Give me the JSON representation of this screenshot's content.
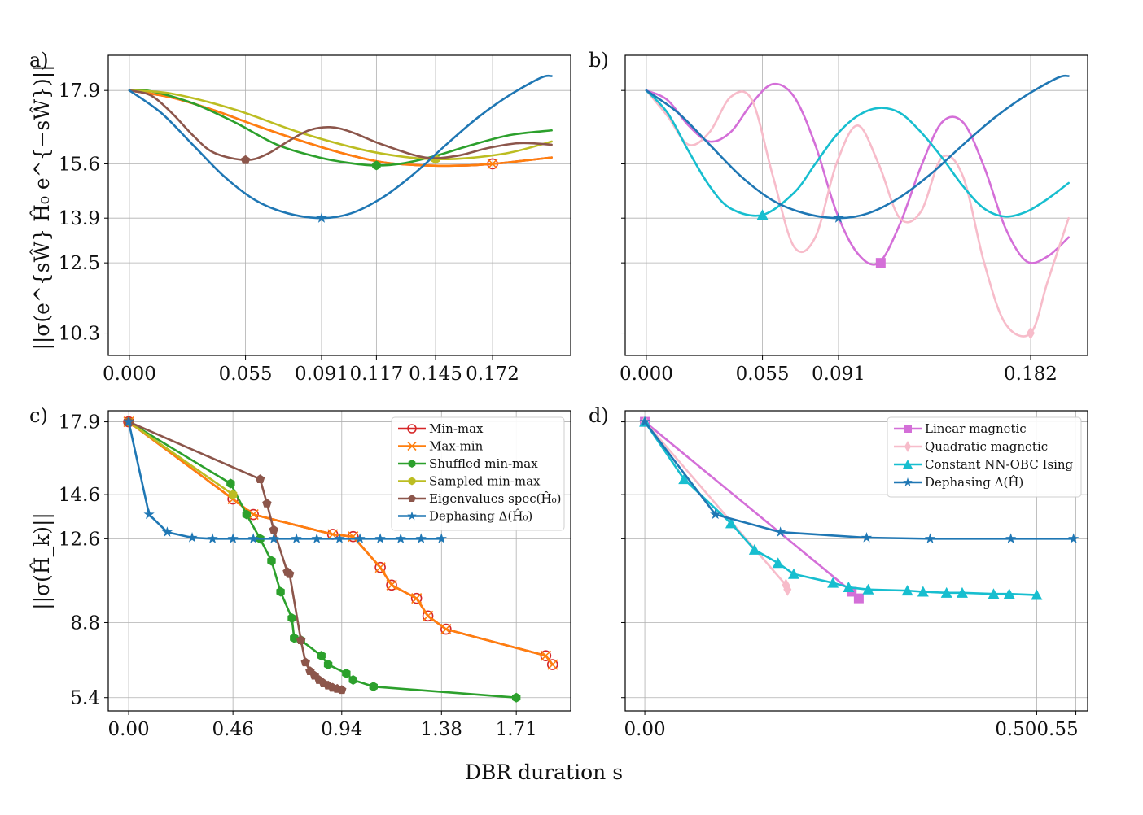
{
  "figure": {
    "xlabel": "DBR duration s",
    "ylabel_top": "||σ(e^{sŴ} Ĥ₀ e^{−sŴ})||",
    "ylabel_bottom": "||σ(Ĥ_k)||"
  },
  "colors": {
    "minmax": "#d62728",
    "maxmin": "#ff7f0e",
    "shuffled": "#2ca02c",
    "sampled": "#bcbd22",
    "eigen": "#8c564b",
    "dephasing": "#1f77b4",
    "linear": "#d46fd8",
    "quadratic": "#f7bcca",
    "ising": "#17becf",
    "dephasing_d": "#1f77b4"
  },
  "chart_data": [
    {
      "id": "a",
      "panel_label": "a)",
      "type": "line",
      "xlim": [
        -0.01,
        0.209
      ],
      "ylim": [
        9.6,
        19.0
      ],
      "xticks": [
        0.0,
        0.055,
        0.091,
        0.117,
        0.145,
        0.172
      ],
      "xtick_labels": [
        "0.000",
        "0.055",
        "0.091",
        "0.117",
        "0.145",
        "0.172"
      ],
      "yticks": [
        17.9,
        15.6,
        13.9,
        12.5,
        10.3
      ],
      "ytick_labels": [
        "17.9",
        "15.6",
        "13.9",
        "12.5",
        "10.3"
      ],
      "series": [
        {
          "name": "Min-max",
          "color_key": "minmax",
          "x": [
            0,
            0.02,
            0.04,
            0.06,
            0.08,
            0.1,
            0.12,
            0.14,
            0.16,
            0.172,
            0.18,
            0.2
          ],
          "y": [
            17.9,
            17.68,
            17.28,
            16.8,
            16.35,
            15.95,
            15.65,
            15.55,
            15.55,
            15.6,
            15.65,
            15.8
          ],
          "marker": {
            "x": 0.172,
            "y": 15.6,
            "symbol": "circle-open"
          }
        },
        {
          "name": "Max-min",
          "color_key": "maxmin",
          "x": [
            0,
            0.02,
            0.04,
            0.06,
            0.08,
            0.1,
            0.12,
            0.14,
            0.16,
            0.172,
            0.18,
            0.2
          ],
          "y": [
            17.9,
            17.68,
            17.28,
            16.8,
            16.35,
            15.95,
            15.65,
            15.55,
            15.55,
            15.6,
            15.65,
            15.8
          ],
          "marker": {
            "x": 0.172,
            "y": 15.6,
            "symbol": "x"
          }
        },
        {
          "name": "Shuffled min-max",
          "color_key": "shuffled",
          "x": [
            0,
            0.01,
            0.03,
            0.05,
            0.07,
            0.09,
            0.105,
            0.117,
            0.13,
            0.145,
            0.16,
            0.18,
            0.2
          ],
          "y": [
            17.9,
            17.88,
            17.5,
            16.9,
            16.2,
            15.8,
            15.62,
            15.55,
            15.62,
            15.85,
            16.15,
            16.5,
            16.65
          ],
          "marker": {
            "x": 0.117,
            "y": 15.55,
            "symbol": "hexagon"
          }
        },
        {
          "name": "Sampled min-max",
          "color_key": "sampled",
          "x": [
            0,
            0.02,
            0.05,
            0.08,
            0.11,
            0.13,
            0.145,
            0.16,
            0.18,
            0.2
          ],
          "y": [
            17.9,
            17.8,
            17.3,
            16.6,
            16.05,
            15.82,
            15.75,
            15.78,
            15.95,
            16.3
          ],
          "marker": {
            "x": 0.145,
            "y": 15.75,
            "symbol": "hexagon"
          }
        },
        {
          "name": "Eigenvalues spec(Ĥ₀)",
          "color_key": "eigen",
          "x": [
            0,
            0.01,
            0.02,
            0.03,
            0.04,
            0.055,
            0.065,
            0.075,
            0.085,
            0.095,
            0.105,
            0.12,
            0.14,
            0.155,
            0.17,
            0.185,
            0.2
          ],
          "y": [
            17.9,
            17.75,
            17.2,
            16.5,
            15.95,
            15.72,
            15.9,
            16.3,
            16.65,
            16.75,
            16.6,
            16.2,
            15.8,
            15.85,
            16.1,
            16.25,
            16.2
          ],
          "marker": {
            "x": 0.055,
            "y": 15.72,
            "symbol": "pentagon"
          }
        },
        {
          "name": "Dephasing Δ(Ĥ₀)",
          "color_key": "dephasing",
          "x": [
            0,
            0.015,
            0.03,
            0.045,
            0.06,
            0.075,
            0.091,
            0.105,
            0.12,
            0.135,
            0.15,
            0.165,
            0.18,
            0.195,
            0.2
          ],
          "y": [
            17.9,
            17.2,
            16.2,
            15.2,
            14.45,
            14.05,
            13.9,
            14.05,
            14.55,
            15.3,
            16.2,
            17.05,
            17.75,
            18.3,
            18.35
          ],
          "marker": {
            "x": 0.091,
            "y": 13.9,
            "symbol": "star"
          }
        }
      ]
    },
    {
      "id": "b",
      "panel_label": "b)",
      "type": "line",
      "xlim": [
        -0.01,
        0.209
      ],
      "ylim": [
        9.6,
        19.0
      ],
      "xticks": [
        0.0,
        0.055,
        0.091,
        0.182
      ],
      "xtick_labels": [
        "0.000",
        "0.055",
        "0.091",
        "0.182"
      ],
      "yticks": [
        17.9,
        15.6,
        13.9,
        12.5,
        10.3
      ],
      "ytick_labels": [
        "",
        "",
        "",
        "",
        ""
      ],
      "series": [
        {
          "name": "Linear magnetic",
          "color_key": "linear",
          "x": [
            0,
            0.01,
            0.02,
            0.03,
            0.04,
            0.05,
            0.06,
            0.07,
            0.08,
            0.09,
            0.1,
            0.11,
            0.12,
            0.13,
            0.14,
            0.15,
            0.16,
            0.17,
            0.18,
            0.19,
            0.2
          ],
          "y": [
            17.9,
            17.6,
            16.8,
            16.3,
            16.6,
            17.5,
            18.1,
            17.7,
            16.2,
            14.1,
            12.8,
            12.5,
            13.7,
            15.5,
            16.9,
            16.9,
            15.5,
            13.6,
            12.55,
            12.7,
            13.3
          ],
          "marker": {
            "x": 0.111,
            "y": 12.5,
            "symbol": "square"
          }
        },
        {
          "name": "Quadratic magnetic",
          "color_key": "quadratic",
          "x": [
            0,
            0.01,
            0.02,
            0.03,
            0.04,
            0.05,
            0.06,
            0.07,
            0.08,
            0.09,
            0.1,
            0.11,
            0.12,
            0.13,
            0.14,
            0.15,
            0.16,
            0.17,
            0.182,
            0.19,
            0.2
          ],
          "y": [
            17.9,
            17.1,
            16.2,
            16.6,
            17.7,
            17.6,
            15.2,
            13.0,
            13.3,
            15.6,
            16.8,
            15.6,
            13.9,
            14.1,
            15.8,
            15.2,
            12.5,
            10.6,
            10.3,
            11.9,
            13.9
          ],
          "marker": {
            "x": 0.182,
            "y": 10.3,
            "symbol": "diamond"
          }
        },
        {
          "name": "Constant NN-OBC Ising",
          "color_key": "ising",
          "x": [
            0,
            0.01,
            0.02,
            0.03,
            0.04,
            0.055,
            0.07,
            0.08,
            0.09,
            0.1,
            0.11,
            0.12,
            0.13,
            0.14,
            0.15,
            0.16,
            0.17,
            0.18,
            0.19,
            0.2
          ],
          "y": [
            17.9,
            17.2,
            16.0,
            14.9,
            14.2,
            14.0,
            14.7,
            15.6,
            16.5,
            17.1,
            17.35,
            17.2,
            16.6,
            15.8,
            14.9,
            14.2,
            13.95,
            14.1,
            14.5,
            15.0
          ],
          "marker": {
            "x": 0.055,
            "y": 14.0,
            "symbol": "triangle"
          }
        },
        {
          "name": "Dephasing Δ(Ĥ)",
          "color_key": "dephasing_d",
          "x": [
            0,
            0.015,
            0.03,
            0.045,
            0.06,
            0.075,
            0.091,
            0.105,
            0.12,
            0.135,
            0.15,
            0.165,
            0.18,
            0.195,
            0.2
          ],
          "y": [
            17.9,
            17.2,
            16.2,
            15.2,
            14.45,
            14.05,
            13.9,
            14.05,
            14.55,
            15.3,
            16.2,
            17.05,
            17.75,
            18.3,
            18.35
          ],
          "marker": {
            "x": 0.091,
            "y": 13.9,
            "symbol": "star"
          }
        }
      ]
    },
    {
      "id": "c",
      "panel_label": "c)",
      "type": "line",
      "xlim": [
        -0.09,
        1.95
      ],
      "ylim": [
        4.8,
        18.4
      ],
      "xticks": [
        0.0,
        0.46,
        0.94,
        1.38,
        1.71
      ],
      "xtick_labels": [
        "0.00",
        "0.46",
        "0.94",
        "1.38",
        "1.71"
      ],
      "yticks": [
        17.9,
        14.6,
        12.6,
        8.8,
        5.4
      ],
      "ytick_labels": [
        "17.9",
        "14.6",
        "12.6",
        "8.8",
        "5.4"
      ],
      "legend": {
        "position": "top-right",
        "series": [
          "Min-max",
          "Max-min",
          "Shuffled min-max",
          "Sampled min-max",
          "Eigenvalues spec(Ĥ₀)",
          "Dephasing Δ(Ĥ₀)"
        ]
      },
      "series": [
        {
          "name": "Min-max",
          "color_key": "minmax",
          "marker": "circle-open",
          "x": [
            0,
            0.46,
            0.55,
            0.9,
            0.99,
            1.11,
            1.16,
            1.27,
            1.32,
            1.4,
            1.84,
            1.87
          ],
          "y": [
            17.9,
            14.4,
            13.7,
            12.8,
            12.7,
            11.3,
            10.5,
            9.9,
            9.1,
            8.5,
            7.3,
            6.9
          ]
        },
        {
          "name": "Max-min",
          "color_key": "maxmin",
          "marker": "x",
          "x": [
            0,
            0.46,
            0.55,
            0.9,
            0.99,
            1.11,
            1.16,
            1.27,
            1.32,
            1.4,
            1.84,
            1.87
          ],
          "y": [
            17.9,
            14.4,
            13.7,
            12.8,
            12.7,
            11.3,
            10.5,
            9.9,
            9.1,
            8.5,
            7.3,
            6.9
          ]
        },
        {
          "name": "Shuffled min-max",
          "color_key": "shuffled",
          "marker": "hexagon",
          "x": [
            0,
            0.45,
            0.52,
            0.58,
            0.63,
            0.67,
            0.72,
            0.73,
            0.76,
            0.85,
            0.88,
            0.96,
            0.99,
            1.08,
            1.71
          ],
          "y": [
            17.9,
            15.1,
            13.7,
            12.6,
            11.6,
            10.2,
            9.0,
            8.1,
            8.0,
            7.3,
            6.9,
            6.5,
            6.2,
            5.9,
            5.4
          ]
        },
        {
          "name": "Sampled min-max",
          "color_key": "sampled",
          "marker": "hexagon",
          "x": [
            0,
            0.46
          ],
          "y": [
            17.9,
            14.6
          ]
        },
        {
          "name": "Eigenvalues spec(Ĥ₀)",
          "color_key": "eigen",
          "marker": "pentagon",
          "x": [
            0,
            0.58,
            0.61,
            0.64,
            0.7,
            0.71,
            0.76,
            0.78,
            0.8,
            0.82,
            0.84,
            0.86,
            0.88,
            0.9,
            0.92,
            0.94
          ],
          "y": [
            17.9,
            15.3,
            14.2,
            13.0,
            11.1,
            11.0,
            8.0,
            7.0,
            6.6,
            6.4,
            6.2,
            6.05,
            5.95,
            5.85,
            5.8,
            5.75
          ]
        },
        {
          "name": "Dephasing Δ(Ĥ₀)",
          "color_key": "dephasing",
          "marker": "star",
          "x": [
            0,
            0.09,
            0.17,
            0.28,
            0.37,
            0.46,
            0.55,
            0.64,
            0.74,
            0.83,
            0.93,
            1.02,
            1.11,
            1.2,
            1.29,
            1.38
          ],
          "y": [
            17.9,
            13.7,
            12.9,
            12.65,
            12.6,
            12.6,
            12.6,
            12.6,
            12.6,
            12.6,
            12.6,
            12.6,
            12.6,
            12.6,
            12.6,
            12.6
          ]
        }
      ]
    },
    {
      "id": "d",
      "panel_label": "d)",
      "type": "line",
      "xlim": [
        -0.025,
        0.565
      ],
      "ylim": [
        4.8,
        18.4
      ],
      "xticks": [
        0.0,
        0.5,
        0.55
      ],
      "xtick_labels": [
        "0.00",
        "0.500.55",
        ""
      ],
      "yticks": [
        17.9,
        14.6,
        12.6,
        8.8,
        5.4
      ],
      "ytick_labels": [
        "",
        "",
        "",
        "",
        ""
      ],
      "legend": {
        "position": "top-right",
        "series": [
          "Linear magnetic",
          "Quadratic magnetic",
          "Constant NN-OBC Ising",
          "Dephasing Δ(Ĥ)"
        ]
      },
      "series": [
        {
          "name": "Linear magnetic",
          "color_key": "linear",
          "marker": "square",
          "x": [
            0,
            0.264,
            0.273
          ],
          "y": [
            17.9,
            10.2,
            9.9
          ]
        },
        {
          "name": "Quadratic magnetic",
          "color_key": "quadratic",
          "marker": "diamond",
          "x": [
            0,
            0.18,
            0.182
          ],
          "y": [
            17.9,
            10.5,
            10.3
          ]
        },
        {
          "name": "Constant NN-OBC Ising",
          "color_key": "ising",
          "marker": "triangle",
          "x": [
            0,
            0.05,
            0.11,
            0.14,
            0.17,
            0.19,
            0.24,
            0.26,
            0.285,
            0.335,
            0.355,
            0.385,
            0.405,
            0.445,
            0.465,
            0.5
          ],
          "y": [
            17.9,
            15.3,
            13.3,
            12.1,
            11.5,
            11.0,
            10.6,
            10.4,
            10.3,
            10.25,
            10.2,
            10.15,
            10.15,
            10.1,
            10.1,
            10.05
          ]
        },
        {
          "name": "Dephasing Δ(Ĥ)",
          "color_key": "dephasing_d",
          "marker": "star",
          "x": [
            0,
            0.09,
            0.173,
            0.283,
            0.364,
            0.467,
            0.547
          ],
          "y": [
            17.9,
            13.7,
            12.9,
            12.65,
            12.6,
            12.6,
            12.6
          ]
        }
      ]
    }
  ]
}
